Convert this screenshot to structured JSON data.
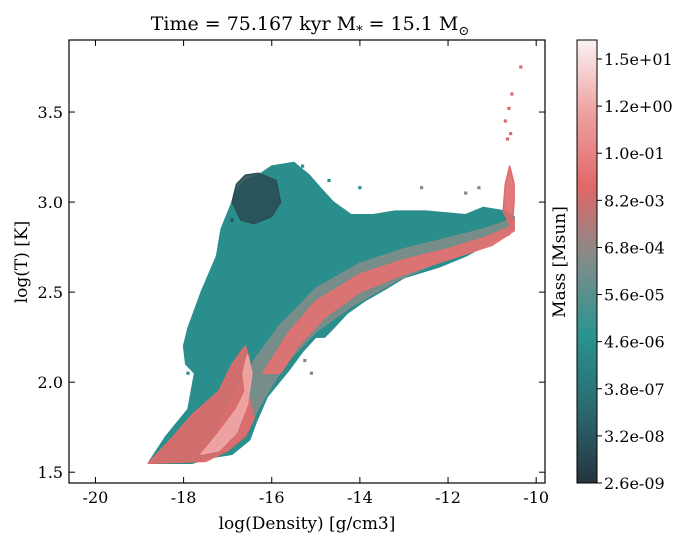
{
  "chart_data": {
    "type": "heatmap",
    "title": "Time = 75.167 kyr    M$_*$ = 15.1 M$_\\odot$",
    "title_display": {
      "prefix": "Time = 75.167 kyr   M",
      "star": "*",
      "mid": " = 15.1 M",
      "sun": "⊙"
    },
    "xlabel": "log(Density) [g/cm3]",
    "ylabel": "log(T) [K]",
    "xlim": [
      -20.6,
      -9.8
    ],
    "ylim": [
      1.44,
      3.9
    ],
    "xticks": [
      -20,
      -18,
      -16,
      -14,
      -12,
      -10
    ],
    "xtick_labels": [
      "-20",
      "-18",
      "-16",
      "-14",
      "-12",
      "-10"
    ],
    "yticks": [
      1.5,
      2.0,
      2.5,
      3.0,
      3.5
    ],
    "ytick_labels": [
      "1.5",
      "2.0",
      "2.5",
      "3.0",
      "3.5"
    ],
    "colorbar": {
      "label": "Mass [Msun]",
      "scale": "log",
      "tick_labels": [
        "2.6e-09",
        "3.2e-08",
        "3.8e-07",
        "4.6e-06",
        "5.6e-05",
        "6.8e-04",
        "8.2e-03",
        "1.0e-01",
        "1.2e+00",
        "1.5e+01"
      ],
      "colors": [
        "#26343f",
        "#2a6a70",
        "#2a9390",
        "#7f8d8a",
        "#e06868",
        "#eea0a0",
        "#fbf2f2"
      ]
    },
    "regions": [
      {
        "name": "main-distribution",
        "mass_level": "low",
        "color": "#2a8f8c",
        "polygon": [
          [
            -18.8,
            1.55
          ],
          [
            -18.4,
            1.7
          ],
          [
            -17.9,
            1.85
          ],
          [
            -17.75,
            2.05
          ],
          [
            -17.95,
            2.1
          ],
          [
            -18.0,
            2.2
          ],
          [
            -17.9,
            2.3
          ],
          [
            -17.6,
            2.5
          ],
          [
            -17.25,
            2.7
          ],
          [
            -17.15,
            2.85
          ],
          [
            -16.9,
            3.0
          ],
          [
            -16.85,
            3.05
          ],
          [
            -16.6,
            3.12
          ],
          [
            -16.3,
            3.15
          ],
          [
            -16.0,
            3.2
          ],
          [
            -15.5,
            3.22
          ],
          [
            -15.15,
            3.15
          ],
          [
            -14.9,
            3.08
          ],
          [
            -14.6,
            3.0
          ],
          [
            -14.2,
            2.93
          ],
          [
            -13.7,
            2.93
          ],
          [
            -13.2,
            2.95
          ],
          [
            -12.5,
            2.95
          ],
          [
            -11.6,
            2.93
          ],
          [
            -11.2,
            2.97
          ],
          [
            -10.7,
            2.95
          ],
          [
            -10.5,
            2.92
          ],
          [
            -10.5,
            2.85
          ],
          [
            -11.0,
            2.78
          ],
          [
            -11.6,
            2.7
          ],
          [
            -12.2,
            2.64
          ],
          [
            -13.0,
            2.58
          ],
          [
            -13.4,
            2.52
          ],
          [
            -13.9,
            2.45
          ],
          [
            -14.3,
            2.38
          ],
          [
            -14.6,
            2.3
          ],
          [
            -14.8,
            2.25
          ],
          [
            -15.0,
            2.25
          ],
          [
            -15.3,
            2.17
          ],
          [
            -15.6,
            2.07
          ],
          [
            -16.1,
            1.92
          ],
          [
            -16.35,
            1.78
          ],
          [
            -16.5,
            1.68
          ],
          [
            -16.9,
            1.6
          ],
          [
            -17.4,
            1.58
          ],
          [
            -17.8,
            1.55
          ]
        ]
      },
      {
        "name": "diffuse-cap",
        "mass_level": "very-low",
        "color": "#2a4e56",
        "polygon": [
          [
            -16.9,
            3.0
          ],
          [
            -16.8,
            3.1
          ],
          [
            -16.6,
            3.15
          ],
          [
            -16.3,
            3.16
          ],
          [
            -15.9,
            3.12
          ],
          [
            -15.8,
            3.0
          ],
          [
            -16.0,
            2.92
          ],
          [
            -16.4,
            2.88
          ],
          [
            -16.7,
            2.9
          ]
        ]
      },
      {
        "name": "mid-mass-band",
        "mass_level": "medium",
        "color": "#7f8d8a",
        "polygon": [
          [
            -17.4,
            1.65
          ],
          [
            -16.9,
            1.9
          ],
          [
            -16.4,
            2.12
          ],
          [
            -15.8,
            2.32
          ],
          [
            -15.0,
            2.52
          ],
          [
            -14.0,
            2.66
          ],
          [
            -13.0,
            2.74
          ],
          [
            -12.0,
            2.8
          ],
          [
            -11.2,
            2.85
          ],
          [
            -10.6,
            2.9
          ],
          [
            -10.6,
            2.82
          ],
          [
            -11.2,
            2.76
          ],
          [
            -12.2,
            2.67
          ],
          [
            -13.2,
            2.56
          ],
          [
            -14.2,
            2.42
          ],
          [
            -15.0,
            2.28
          ],
          [
            -15.7,
            2.1
          ],
          [
            -16.2,
            1.9
          ],
          [
            -16.6,
            1.72
          ],
          [
            -17.0,
            1.62
          ]
        ]
      },
      {
        "name": "high-mass-ridge",
        "mass_level": "high",
        "color": "#e26a6a",
        "polygon": [
          [
            -18.8,
            1.55
          ],
          [
            -18.3,
            1.68
          ],
          [
            -17.8,
            1.82
          ],
          [
            -17.2,
            1.95
          ],
          [
            -16.9,
            2.1
          ],
          [
            -16.6,
            2.2
          ],
          [
            -16.5,
            2.12
          ],
          [
            -16.55,
            1.95
          ],
          [
            -16.4,
            1.8
          ],
          [
            -16.6,
            1.7
          ],
          [
            -17.0,
            1.62
          ],
          [
            -17.5,
            1.56
          ]
        ]
      },
      {
        "name": "high-mass-upper-branch",
        "mass_level": "high",
        "color": "#e47070",
        "polygon": [
          [
            -16.2,
            2.05
          ],
          [
            -15.6,
            2.28
          ],
          [
            -15.0,
            2.45
          ],
          [
            -14.0,
            2.6
          ],
          [
            -13.0,
            2.68
          ],
          [
            -12.0,
            2.74
          ],
          [
            -11.2,
            2.8
          ],
          [
            -10.6,
            2.86
          ],
          [
            -10.5,
            2.9
          ],
          [
            -10.5,
            2.84
          ],
          [
            -11.0,
            2.76
          ],
          [
            -12.0,
            2.68
          ],
          [
            -13.0,
            2.6
          ],
          [
            -14.0,
            2.5
          ],
          [
            -14.8,
            2.36
          ],
          [
            -15.4,
            2.2
          ],
          [
            -15.8,
            2.05
          ]
        ]
      },
      {
        "name": "peak-core",
        "mass_level": "peak",
        "color": "#f0a6a6",
        "polygon": [
          [
            -17.6,
            1.6
          ],
          [
            -17.2,
            1.72
          ],
          [
            -16.8,
            1.85
          ],
          [
            -16.6,
            1.95
          ],
          [
            -16.65,
            2.05
          ],
          [
            -16.55,
            2.15
          ],
          [
            -16.45,
            2.05
          ],
          [
            -16.55,
            1.88
          ],
          [
            -16.8,
            1.72
          ],
          [
            -17.2,
            1.62
          ]
        ]
      },
      {
        "name": "hot-spike",
        "mass_level": "high",
        "color": "#e06a6a",
        "polygon": [
          [
            -10.55,
            2.85
          ],
          [
            -10.5,
            3.0
          ],
          [
            -10.5,
            3.1
          ],
          [
            -10.6,
            3.2
          ],
          [
            -10.7,
            3.1
          ],
          [
            -10.75,
            2.95
          ]
        ]
      }
    ],
    "scatter_points": [
      {
        "x": -10.35,
        "y": 3.75,
        "level": "high"
      },
      {
        "x": -10.55,
        "y": 3.6,
        "level": "high"
      },
      {
        "x": -10.62,
        "y": 3.52,
        "level": "high"
      },
      {
        "x": -10.7,
        "y": 3.45,
        "level": "high"
      },
      {
        "x": -10.65,
        "y": 3.35,
        "level": "high"
      },
      {
        "x": -10.58,
        "y": 3.38,
        "level": "high"
      },
      {
        "x": -11.3,
        "y": 3.08,
        "level": "medium"
      },
      {
        "x": -11.6,
        "y": 3.05,
        "level": "medium"
      },
      {
        "x": -12.6,
        "y": 3.08,
        "level": "medium"
      },
      {
        "x": -14.0,
        "y": 3.08,
        "level": "low"
      },
      {
        "x": -14.7,
        "y": 3.12,
        "level": "low"
      },
      {
        "x": -15.3,
        "y": 3.2,
        "level": "low"
      },
      {
        "x": -16.9,
        "y": 2.9,
        "level": "very-low"
      },
      {
        "x": -17.9,
        "y": 2.05,
        "level": "low"
      },
      {
        "x": -17.7,
        "y": 1.98,
        "level": "low"
      },
      {
        "x": -15.1,
        "y": 2.05,
        "level": "medium"
      },
      {
        "x": -15.25,
        "y": 2.12,
        "level": "medium"
      }
    ]
  }
}
